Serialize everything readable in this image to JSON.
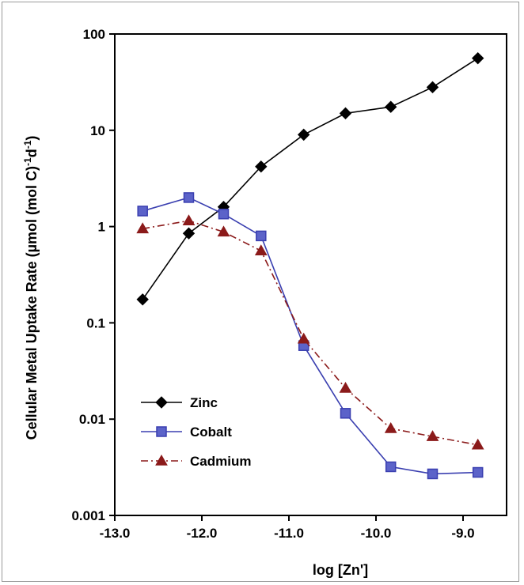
{
  "chart_data": {
    "type": "line",
    "xlabel": "log [Zn']",
    "ylabel": "Cellular Metal Uptake Rate (µmol (mol C)",
    "ylabel_suffix_1": "-1",
    "ylabel_mid": "d",
    "ylabel_suffix_2": "-1",
    "ylabel_end": ")",
    "y_scale": "log",
    "ylim": [
      0.001,
      100
    ],
    "xlim": [
      -13.0,
      -8.5
    ],
    "x_ticks": [
      -13.0,
      -12.0,
      -11.0,
      -10.0,
      -9.0
    ],
    "x_tick_labels": [
      "-13.0",
      "-12.0",
      "-11.0",
      "-10.0",
      "-9.0"
    ],
    "y_ticks": [
      0.001,
      0.01,
      0.1,
      1,
      10,
      100
    ],
    "y_tick_labels": [
      "0.001",
      "0.01",
      "0.1",
      "1",
      "10",
      "100"
    ],
    "grid": false,
    "legend_position": "bottom-left",
    "series": [
      {
        "name": "Zinc",
        "color": "#000000",
        "marker": "diamond",
        "line": "solid",
        "x": [
          -12.68,
          -12.15,
          -11.75,
          -11.32,
          -10.83,
          -10.35,
          -9.83,
          -9.35,
          -8.83
        ],
        "y": [
          0.175,
          0.85,
          1.6,
          4.2,
          9.0,
          15.0,
          17.5,
          28.0,
          56.0
        ]
      },
      {
        "name": "Cobalt",
        "color": "#3a3fb0",
        "marker": "square",
        "line": "solid",
        "x": [
          -12.68,
          -12.15,
          -11.75,
          -11.32,
          -10.83,
          -10.35,
          -9.83,
          -9.35,
          -8.83
        ],
        "y": [
          1.45,
          2.0,
          1.35,
          0.8,
          0.058,
          0.0115,
          0.0032,
          0.0027,
          0.0028
        ]
      },
      {
        "name": "Cadmium",
        "color": "#8b1a1a",
        "marker": "triangle",
        "line": "dashdot",
        "x": [
          -12.68,
          -12.15,
          -11.75,
          -11.32,
          -10.83,
          -10.35,
          -9.83,
          -9.35,
          -8.83
        ],
        "y": [
          0.95,
          1.15,
          0.88,
          0.56,
          0.068,
          0.021,
          0.008,
          0.0066,
          0.0054
        ]
      }
    ]
  }
}
